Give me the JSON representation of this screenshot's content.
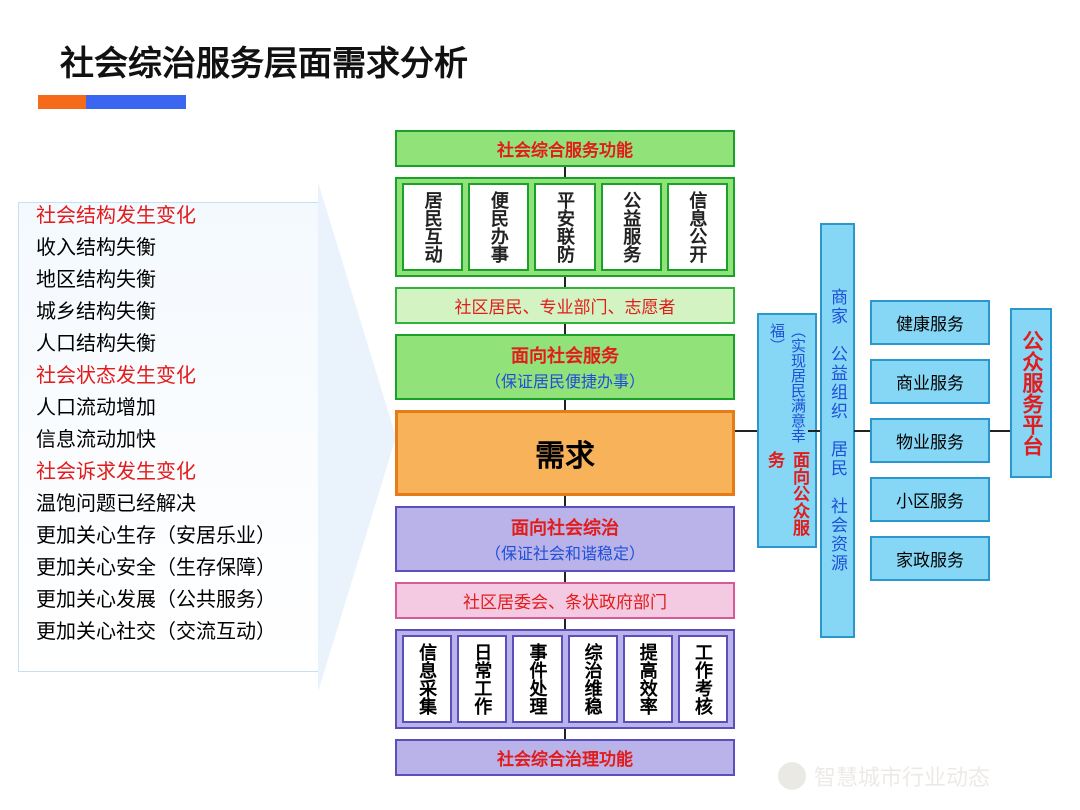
{
  "title": "社会综治服务层面需求分析",
  "accent": {
    "orange": "#f46b1a",
    "blue": "#3a66f0"
  },
  "colors": {
    "green_border": "#1aa12a",
    "green_fill": "#92e27a",
    "lightgreen_border": "#33b03e",
    "lightgreen_fill": "#d3f3c2",
    "orange_border": "#e57c17",
    "orange_fill": "#f8b35a",
    "purple_border": "#5a4fbd",
    "purple_fill": "#b9b3ea",
    "cyan_border": "#2b97cf",
    "cyan_fill": "#86d7f5",
    "pink_border": "#d65a9a",
    "pink_fill": "#f3cae1",
    "red": "#e21b1b",
    "blue_link": "#1f4fd8",
    "black": "#111"
  },
  "left_list": [
    {
      "t": "社会结构发生变化",
      "red": true
    },
    {
      "t": "收入结构失衡"
    },
    {
      "t": "地区结构失衡"
    },
    {
      "t": "城乡结构失衡"
    },
    {
      "t": "人口结构失衡"
    },
    {
      "t": "社会状态发生变化",
      "red": true
    },
    {
      "t": "人口流动增加"
    },
    {
      "t": "信息流动加快"
    },
    {
      "t": "社会诉求发生变化",
      "red": true
    },
    {
      "t": "温饱问题已经解决"
    },
    {
      "t": "更加关心生存（安居乐业）"
    },
    {
      "t": "更加关心安全（生存保障）"
    },
    {
      "t": "更加关心发展（公共服务）"
    },
    {
      "t": "更加关心社交（交流互动）"
    }
  ],
  "center": {
    "top_header": "社会综合服务功能",
    "top_items": [
      "居民互动",
      "便民办事",
      "平安联防",
      "公益服务",
      "信息公开"
    ],
    "top_sub": "社区居民、专业部门、志愿者",
    "mid_top": {
      "t": "面向社会服务",
      "s": "（保证居民便捷办事）"
    },
    "demand": "需求",
    "mid_bot": {
      "t": "面向社会综治",
      "s": "（保证社会和谐稳定）"
    },
    "bot_sub": "社区居委会、条状政府部门",
    "bot_items": [
      "信息采集",
      "日常工作",
      "事件处理",
      "综治维稳",
      "提高效率",
      "工作考核"
    ],
    "bot_header": "社会综合治理功能"
  },
  "side1": {
    "t": "面向公众服务",
    "s": "（实现居民满意幸福）"
  },
  "side2": "商家　公益组织　居民　社会资源",
  "right_items": [
    "健康服务",
    "商业服务",
    "物业服务",
    "小区服务",
    "家政服务"
  ],
  "platform": "公众服务平台",
  "footer": "智慧城市行业动态"
}
